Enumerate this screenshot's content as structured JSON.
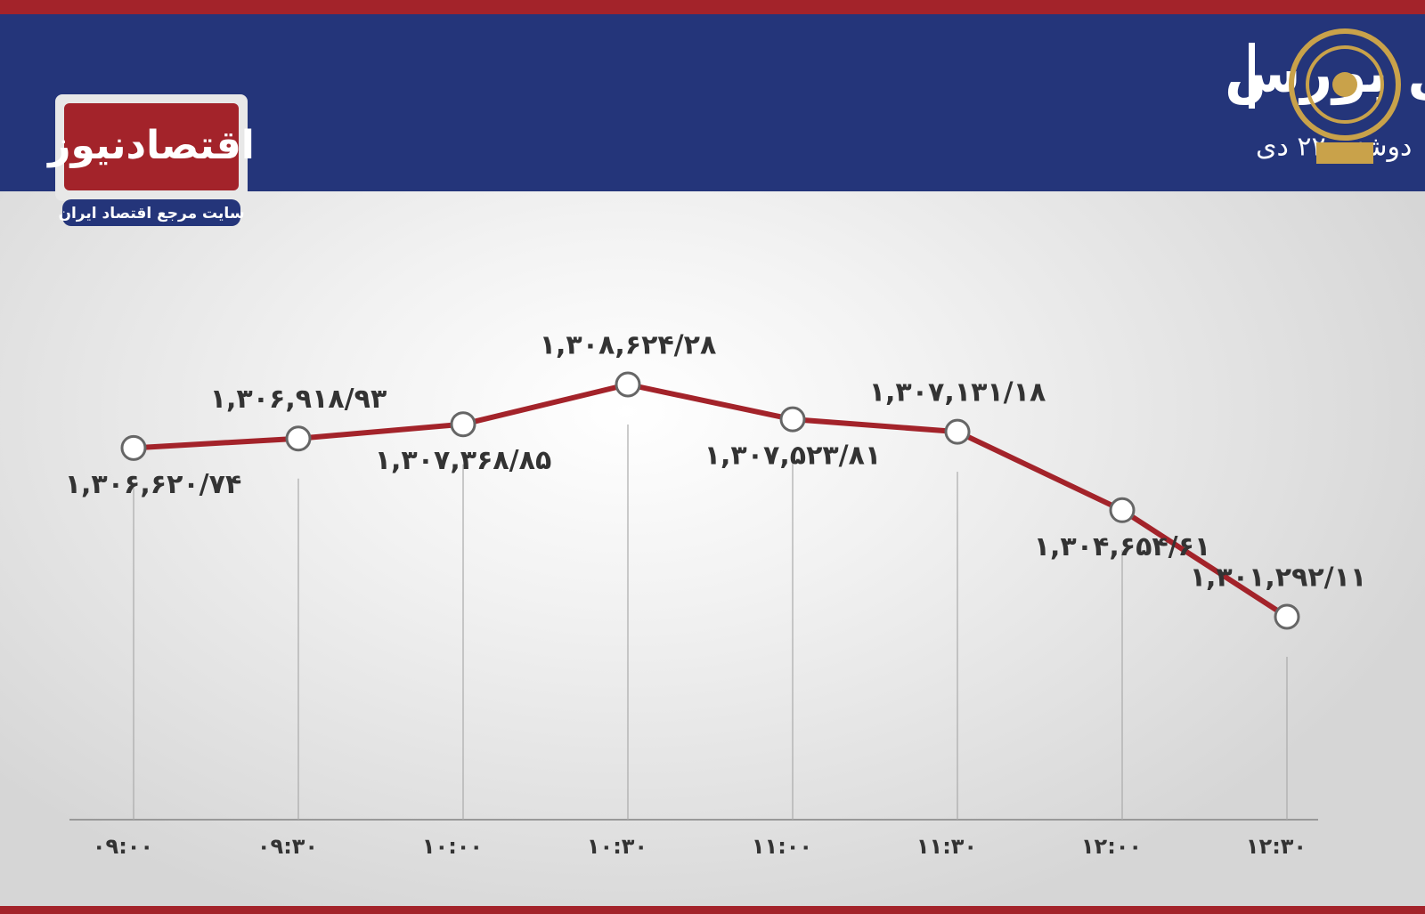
{
  "header": {
    "title": "روند هفته شاخص کل بورس",
    "subtitle": "دوشنبه ۲۲ دی",
    "logo": "اقتصادنیوز",
    "tagline": "سایت مرجع اقتصاد ایران"
  },
  "chart_data": {
    "type": "line",
    "categories": [
      "۰۹:۰۰",
      "۰۹:۳۰",
      "۱۰:۰۰",
      "۱۰:۳۰",
      "۱۱:۰۰",
      "۱۱:۳۰",
      "۱۲:۰۰",
      "۱۲:۳۰"
    ],
    "values": [
      1306620.74,
      1306918.93,
      1307368.85,
      1308624.28,
      1307523.81,
      1307131.18,
      1304654.61,
      1301292.11
    ],
    "value_labels": [
      "۱,۳۰۶,۶۲۰/۷۴",
      "۱,۳۰۶,۹۱۸/۹۳",
      "۱,۳۰۷,۳۶۸/۸۵",
      "۱,۳۰۸,۶۲۴/۲۸",
      "۱,۳۰۷,۵۲۳/۸۱",
      "۱,۳۰۷,۱۳۱/۱۸",
      "۱,۳۰۴,۶۵۴/۶۱",
      "۱,۳۰۱,۲۹۲/۱۱"
    ],
    "color": "#a3232a"
  }
}
